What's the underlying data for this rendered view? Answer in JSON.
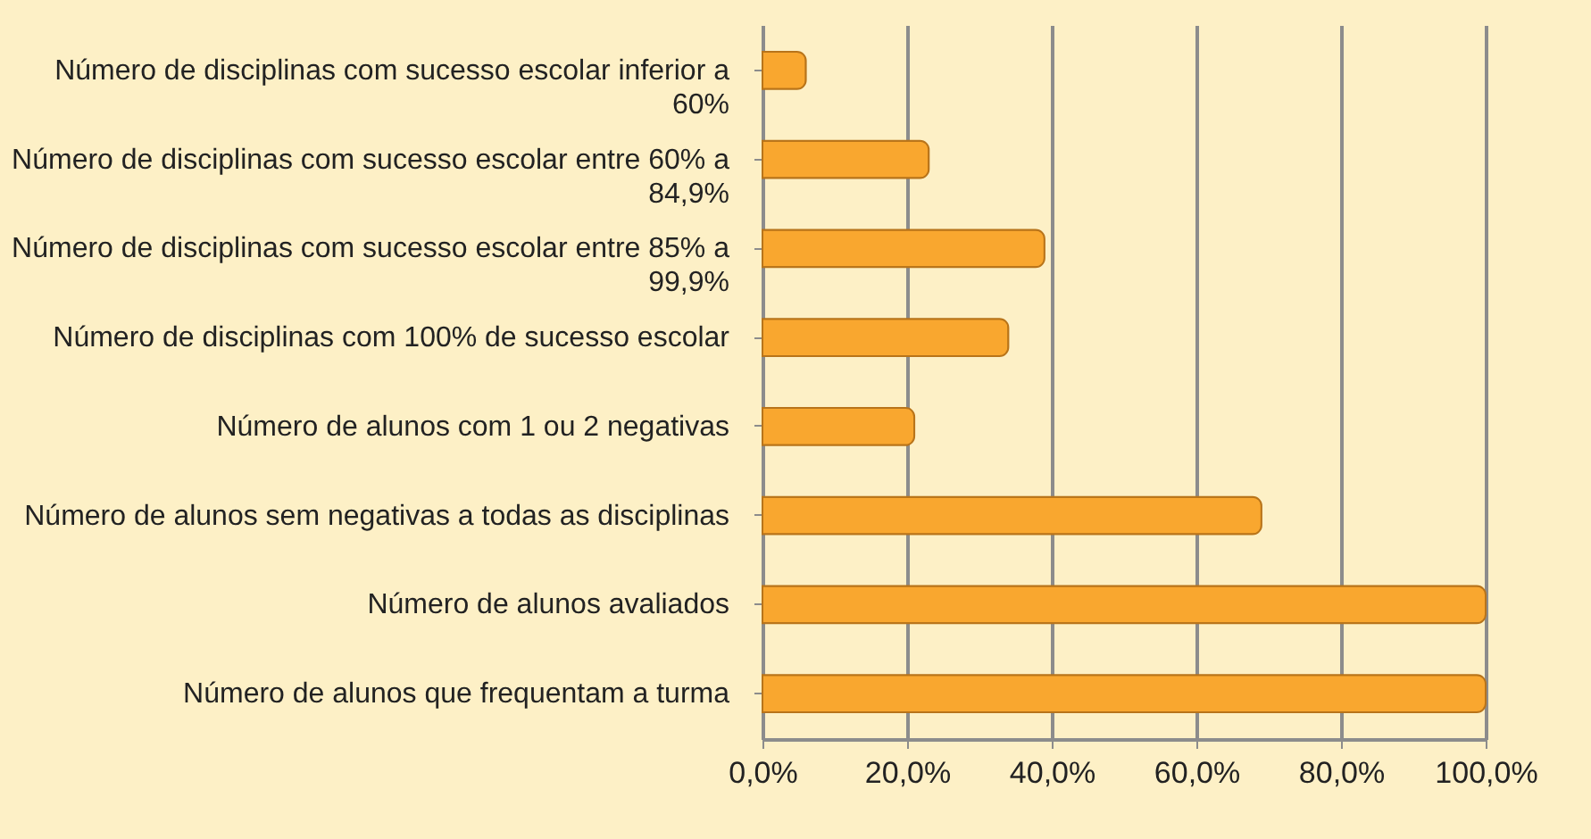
{
  "chart_data": {
    "type": "bar",
    "orientation": "horizontal",
    "categories": [
      "Número de disciplinas com sucesso escolar inferior a 60%",
      "Número de disciplinas com sucesso escolar entre 60% a 84,9%",
      "Número de disciplinas com sucesso escolar entre 85% a 99,9%",
      "Número de disciplinas com 100% de sucesso escolar",
      "Número de alunos com 1 ou 2 negativas",
      "Número de alunos sem negativas a todas as disciplinas",
      "Número de alunos avaliados",
      "Número de alunos que frequentam a turma"
    ],
    "values": [
      6,
      23,
      39,
      34,
      21,
      69,
      100,
      100
    ],
    "color": "#f9a72f",
    "xlim": [
      0,
      100
    ],
    "xticks": [
      {
        "value": 0,
        "label": "0,0%"
      },
      {
        "value": 20,
        "label": "20,0%"
      },
      {
        "value": 40,
        "label": "40,0%"
      },
      {
        "value": 60,
        "label": "60,0%"
      },
      {
        "value": 80,
        "label": "80,0%"
      },
      {
        "value": 100,
        "label": "100,0%"
      }
    ],
    "grid": "x",
    "legend": false
  }
}
